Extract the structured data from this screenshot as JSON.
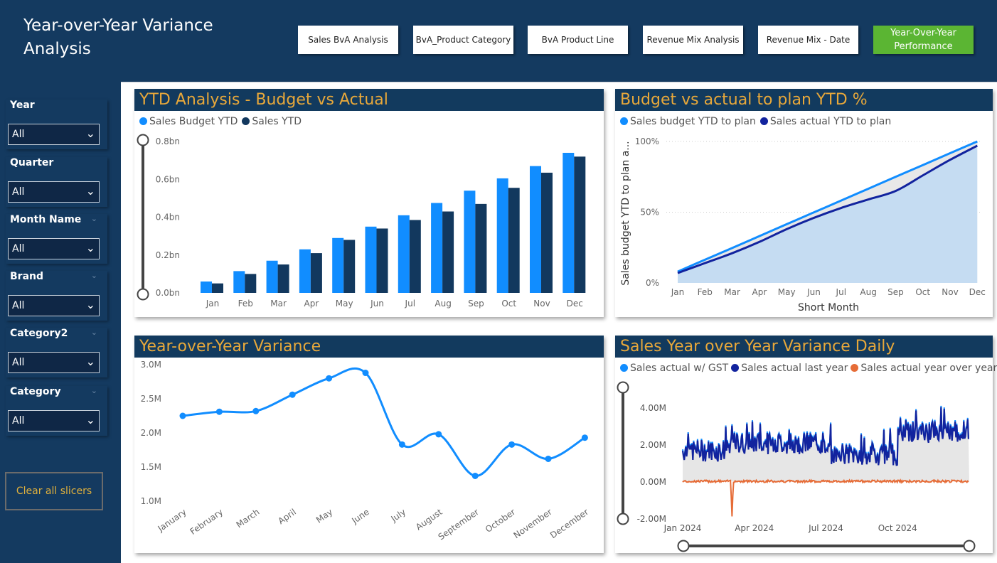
{
  "header": {
    "title": "Year-over-Year Variance Analysis"
  },
  "nav": [
    {
      "label": "Sales BvA Analysis"
    },
    {
      "label": "BvA_Product Category"
    },
    {
      "label": "BvA Product Line"
    },
    {
      "label": "Revenue Mix Analysis"
    },
    {
      "label": "Revenue Mix - Date"
    },
    {
      "label": "Year-Over-Year Performance",
      "active": true
    }
  ],
  "slicers": [
    {
      "label": "Year",
      "value": "All"
    },
    {
      "label": "Quarter",
      "value": "All"
    },
    {
      "label": "Month Name",
      "value": "All"
    },
    {
      "label": "Brand",
      "value": "All"
    },
    {
      "label": "Category2",
      "value": "All"
    },
    {
      "label": "Category",
      "value": "All"
    }
  ],
  "clear_label": "Clear all slicers",
  "colors": {
    "accent_green": "#5bb533",
    "title_gold": "#e8a83a",
    "navy": "#123a5e",
    "light_blue": "#118dff",
    "dark_navy": "#12385e",
    "actual_blue": "#12239e",
    "orange": "#e66c37"
  },
  "chart_data": [
    {
      "type": "bar",
      "title": "YTD Analysis - Budget vs Actual",
      "categories": [
        "Jan",
        "Feb",
        "Mar",
        "Apr",
        "May",
        "Jun",
        "Jul",
        "Aug",
        "Sep",
        "Oct",
        "Nov",
        "Dec"
      ],
      "series": [
        {
          "name": "Sales Budget YTD",
          "values": [
            0.06,
            0.115,
            0.17,
            0.23,
            0.29,
            0.35,
            0.41,
            0.475,
            0.54,
            0.605,
            0.67,
            0.74
          ]
        },
        {
          "name": "Sales YTD",
          "values": [
            0.05,
            0.1,
            0.15,
            0.21,
            0.28,
            0.34,
            0.385,
            0.43,
            0.47,
            0.555,
            0.635,
            0.72
          ]
        }
      ],
      "yticks": [
        "0.0bn",
        "0.2bn",
        "0.4bn",
        "0.6bn",
        "0.8bn"
      ],
      "ylim": [
        0,
        0.8
      ],
      "unit": "bn"
    },
    {
      "type": "area",
      "title": "Budget vs actual to plan YTD %",
      "categories": [
        "Jan",
        "Feb",
        "Mar",
        "Apr",
        "May",
        "Jun",
        "Jul",
        "Aug",
        "Sep",
        "Oct",
        "Nov",
        "Dec"
      ],
      "series": [
        {
          "name": "Sales budget YTD to plan",
          "values": [
            8,
            16.4,
            24.7,
            33.1,
            41.5,
            49.9,
            58.2,
            66.6,
            75,
            83.3,
            91.7,
            100
          ]
        },
        {
          "name": "Sales actual YTD to plan",
          "values": [
            7,
            14,
            21,
            29,
            38,
            46,
            53,
            59,
            65,
            76,
            87,
            97
          ]
        }
      ],
      "xlabel": "Short Month",
      "ylabel": "Sales budget YTD to plan a...",
      "yticks": [
        "0%",
        "50%",
        "100%"
      ],
      "ylim": [
        0,
        100
      ]
    },
    {
      "type": "line",
      "title": "Year-over-Year Variance",
      "categories": [
        "January",
        "February",
        "March",
        "April",
        "May",
        "June",
        "July",
        "August",
        "September",
        "October",
        "November",
        "December"
      ],
      "values": [
        2.25,
        2.31,
        2.32,
        2.56,
        2.8,
        2.88,
        1.83,
        1.98,
        1.37,
        1.83,
        1.62,
        1.93
      ],
      "yticks": [
        "1.0M",
        "1.5M",
        "2.0M",
        "2.5M",
        "3.0M"
      ],
      "ylim": [
        1.0,
        3.0
      ]
    },
    {
      "type": "line",
      "title": "Sales Year over Year Variance Daily",
      "series": [
        {
          "name": "Sales actual w/ GST"
        },
        {
          "name": "Sales actual last year"
        },
        {
          "name": "Sales actual year over year var"
        }
      ],
      "xticks": [
        "Jan 2024",
        "Apr 2024",
        "Jul 2024",
        "Oct 2024"
      ],
      "yticks": [
        "-2.00M",
        "0.00M",
        "2.00M",
        "4.00M"
      ],
      "ylim": [
        -2,
        4.5
      ],
      "segments_level_M": [
        {
          "from_month": 0,
          "to_month": 2,
          "level": 1.6
        },
        {
          "from_month": 2,
          "to_month": 6,
          "level": 2.0
        },
        {
          "from_month": 6,
          "to_month": 9,
          "level": 1.4
        },
        {
          "from_month": 9,
          "to_month": 12,
          "level": 2.6
        }
      ],
      "variance_spike": {
        "date": "Mar 2024",
        "value_M": -1.9
      }
    }
  ]
}
